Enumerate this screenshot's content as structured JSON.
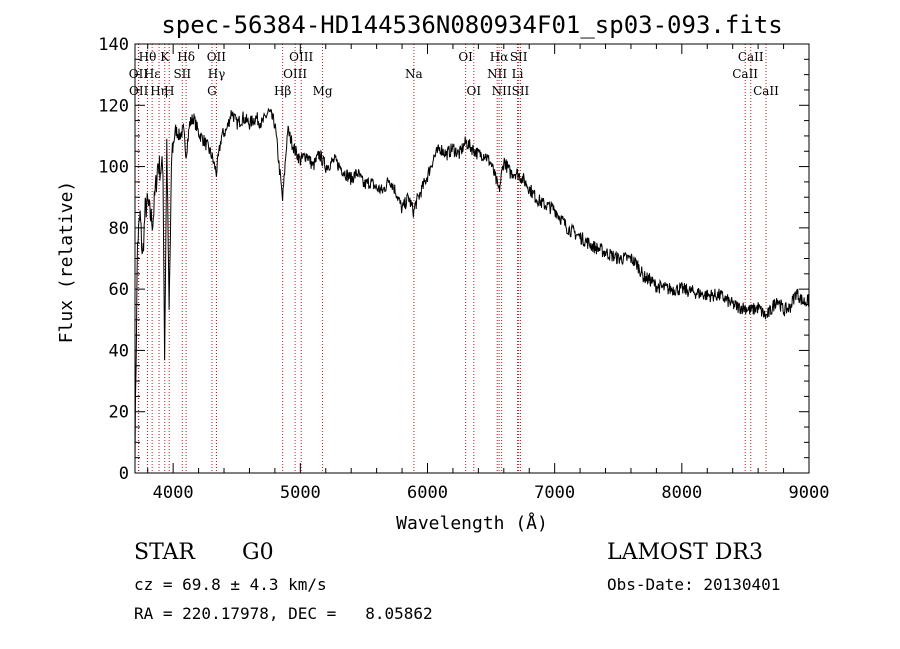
{
  "chart_data": {
    "type": "line",
    "title": "spec-56384-HD144536N080934F01_sp03-093.fits",
    "xlabel": "Wavelength (Å)",
    "ylabel": "Flux (relative)",
    "xlim": [
      3700,
      9000
    ],
    "ylim": [
      0,
      140
    ],
    "x_ticks": [
      4000,
      5000,
      6000,
      7000,
      8000,
      9000
    ],
    "y_ticks": [
      0,
      20,
      40,
      60,
      80,
      100,
      120,
      140
    ],
    "series": [
      {
        "name": "flux",
        "x": [
          3700,
          3720,
          3740,
          3760,
          3780,
          3800,
          3820,
          3840,
          3860,
          3880,
          3900,
          3920,
          3933,
          3950,
          3968,
          3990,
          4020,
          4050,
          4080,
          4102,
          4130,
          4160,
          4200,
          4250,
          4300,
          4340,
          4380,
          4420,
          4460,
          4500,
          4550,
          4600,
          4650,
          4700,
          4750,
          4800,
          4861,
          4900,
          4950,
          5000,
          5050,
          5100,
          5150,
          5200,
          5270,
          5350,
          5400,
          5450,
          5500,
          5550,
          5600,
          5650,
          5700,
          5750,
          5800,
          5850,
          5893,
          5900,
          5950,
          6000,
          6050,
          6100,
          6150,
          6200,
          6250,
          6300,
          6350,
          6400,
          6450,
          6500,
          6563,
          6600,
          6650,
          6700,
          6750,
          6800,
          6850,
          6900,
          6950,
          7000,
          7100,
          7200,
          7300,
          7400,
          7500,
          7600,
          7650,
          7700,
          7750,
          7800,
          7900,
          8000,
          8100,
          8200,
          8300,
          8400,
          8450,
          8498,
          8542,
          8600,
          8662,
          8700,
          8750,
          8800,
          8850,
          8900,
          8950,
          9000
        ],
        "values": [
          8,
          75,
          84,
          70,
          86,
          88,
          84,
          82,
          92,
          101,
          99,
          100,
          38,
          108,
          52,
          105,
          112,
          110,
          112,
          104,
          114,
          116,
          111,
          108,
          104,
          98,
          110,
          112,
          118,
          114,
          116,
          114,
          116,
          114,
          118,
          114,
          89,
          112,
          106,
          102,
          104,
          100,
          104,
          100,
          102,
          98,
          96,
          98,
          94,
          95,
          93,
          92,
          96,
          92,
          86,
          90,
          85,
          87,
          92,
          97,
          103,
          106,
          104,
          106,
          104,
          108,
          106,
          104,
          104,
          101,
          92,
          102,
          98,
          98,
          96,
          93,
          90,
          88,
          87,
          86,
          80,
          77,
          74,
          72,
          70,
          70,
          68,
          64,
          63,
          61,
          60,
          60,
          59,
          58,
          58,
          55,
          54,
          54,
          53,
          54,
          51,
          53,
          57,
          53,
          54,
          59,
          56,
          56
        ]
      }
    ],
    "spectral_lines": [
      {
        "label": "Hθ",
        "wavelength": 3798,
        "row": 1
      },
      {
        "label": "OII",
        "wavelength": 3727,
        "row": 2
      },
      {
        "label": "OII",
        "wavelength": 3729,
        "row": 3
      },
      {
        "label": "Hε",
        "wavelength": 3835,
        "row": 2
      },
      {
        "label": "Hη",
        "wavelength": 3889,
        "row": 3
      },
      {
        "label": "K",
        "wavelength": 3934,
        "row": 1
      },
      {
        "label": "H",
        "wavelength": 3969,
        "row": 3
      },
      {
        "label": "Hδ",
        "wavelength": 4102,
        "row": 1
      },
      {
        "label": "SII",
        "wavelength": 4072,
        "row": 2
      },
      {
        "label": "OII",
        "wavelength": 4340,
        "row": 1
      },
      {
        "label": "Hγ",
        "wavelength": 4341,
        "row": 2
      },
      {
        "label": "G",
        "wavelength": 4305,
        "row": 3
      },
      {
        "label": "Hβ",
        "wavelength": 4861,
        "row": 3
      },
      {
        "label": "OIII",
        "wavelength": 5007,
        "row": 1
      },
      {
        "label": "OIII",
        "wavelength": 4959,
        "row": 2
      },
      {
        "label": "Mg",
        "wavelength": 5175,
        "row": 3
      },
      {
        "label": "Na",
        "wavelength": 5893,
        "row": 2
      },
      {
        "label": "OI",
        "wavelength": 6300,
        "row": 1
      },
      {
        "label": "OI",
        "wavelength": 6364,
        "row": 3
      },
      {
        "label": "Hα",
        "wavelength": 6563,
        "row": 1
      },
      {
        "label": "NII",
        "wavelength": 6548,
        "row": 2
      },
      {
        "label": "NII",
        "wavelength": 6583,
        "row": 3
      },
      {
        "label": "SII",
        "wavelength": 6717,
        "row": 1
      },
      {
        "label": "Li",
        "wavelength": 6708,
        "row": 2
      },
      {
        "label": "SII",
        "wavelength": 6731,
        "row": 3
      },
      {
        "label": "CaII",
        "wavelength": 8542,
        "row": 1
      },
      {
        "label": "CaII",
        "wavelength": 8498,
        "row": 2
      },
      {
        "label": "CaII",
        "wavelength": 8662,
        "row": 3
      }
    ]
  },
  "info": {
    "class": "STAR",
    "subclass": "G0",
    "survey": "LAMOST DR3",
    "redshift": "cz = 69.8 ± 4.3 km/s",
    "obs_date": "Obs-Date: 20130401",
    "coords": "RA = 220.17978, DEC =   8.05862"
  },
  "colors": {
    "spectrum": "#000000",
    "line_markers": "#b22222",
    "axes": "#000000"
  }
}
